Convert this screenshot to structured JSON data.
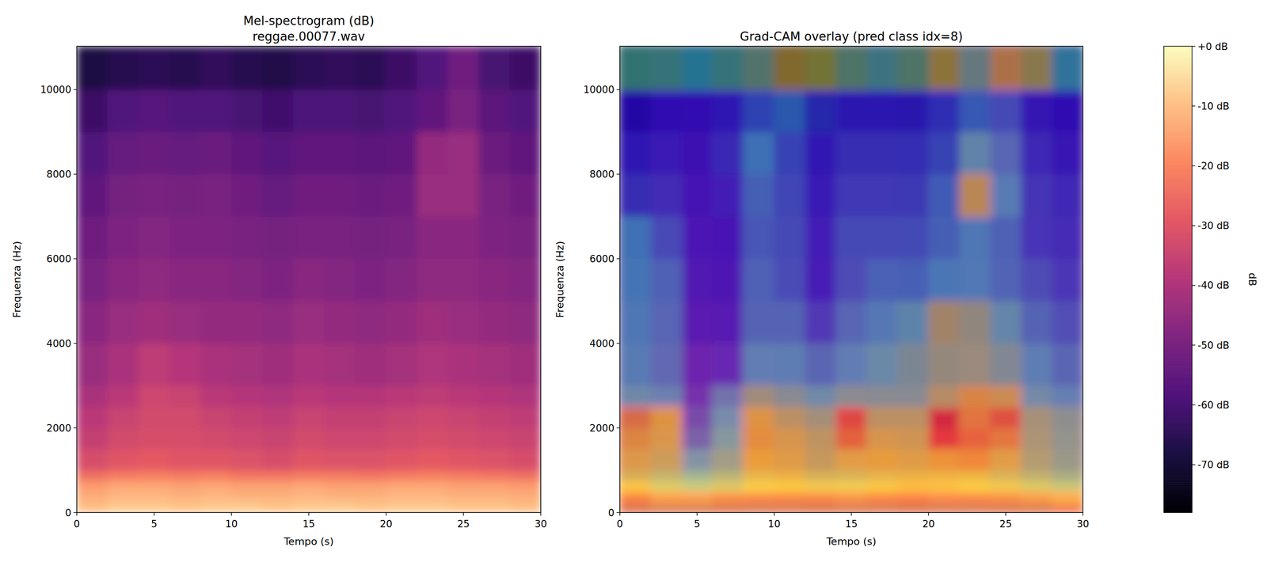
{
  "chart_data": [
    {
      "type": "heatmap",
      "title": "Mel-spectrogram (dB)",
      "subtitle": "reggae.00077.wav",
      "x_label": "Tempo (s)",
      "y_label": "Frequenza (Hz)",
      "xlim": [
        0,
        30
      ],
      "ylim": [
        0,
        11025
      ],
      "xticks": [
        0,
        5,
        10,
        15,
        20,
        25,
        30
      ],
      "yticks": [
        0,
        2000,
        4000,
        6000,
        8000,
        10000
      ],
      "color": "magma",
      "x_bins": [
        0,
        2,
        4,
        6,
        8,
        10,
        12,
        14,
        16,
        18,
        20,
        22,
        24,
        26,
        28,
        30
      ],
      "y_bins": [
        0,
        250,
        500,
        750,
        1000,
        1500,
        2000,
        2500,
        3000,
        4000,
        5000,
        6000,
        7000,
        8000,
        9000,
        10000,
        11025
      ],
      "cells": [
        [
          -10,
          -8,
          -8,
          -9,
          -8,
          -8,
          -9,
          -8,
          -8,
          -9,
          -8,
          -8,
          -9,
          -9,
          -10
        ],
        [
          -13,
          -11,
          -11,
          -12,
          -11,
          -12,
          -12,
          -11,
          -12,
          -12,
          -11,
          -11,
          -12,
          -12,
          -13
        ],
        [
          -16,
          -14,
          -14,
          -15,
          -14,
          -15,
          -15,
          -14,
          -15,
          -15,
          -14,
          -14,
          -15,
          -15,
          -16
        ],
        [
          -24,
          -22,
          -21,
          -22,
          -21,
          -23,
          -23,
          -22,
          -22,
          -23,
          -22,
          -21,
          -22,
          -23,
          -24
        ],
        [
          -32,
          -30,
          -29,
          -30,
          -30,
          -31,
          -32,
          -30,
          -31,
          -31,
          -30,
          -29,
          -30,
          -31,
          -32
        ],
        [
          -36,
          -33,
          -32,
          -32,
          -33,
          -34,
          -35,
          -33,
          -34,
          -34,
          -33,
          -32,
          -33,
          -34,
          -35
        ],
        [
          -38,
          -35,
          -33,
          -33,
          -35,
          -36,
          -37,
          -35,
          -36,
          -36,
          -35,
          -34,
          -35,
          -36,
          -37
        ],
        [
          -41,
          -38,
          -34,
          -35,
          -38,
          -39,
          -40,
          -38,
          -39,
          -39,
          -38,
          -37,
          -38,
          -39,
          -40
        ],
        [
          -44,
          -41,
          -37,
          -39,
          -41,
          -42,
          -43,
          -41,
          -42,
          -43,
          -42,
          -40,
          -41,
          -42,
          -43
        ],
        [
          -47,
          -44,
          -43,
          -44,
          -45,
          -45,
          -46,
          -44,
          -45,
          -46,
          -45,
          -43,
          -44,
          -45,
          -46
        ],
        [
          -50,
          -47,
          -46,
          -47,
          -47,
          -48,
          -49,
          -47,
          -48,
          -49,
          -48,
          -46,
          -46,
          -47,
          -48
        ],
        [
          -52,
          -49,
          -48,
          -49,
          -49,
          -50,
          -51,
          -50,
          -50,
          -51,
          -50,
          -47,
          -47,
          -49,
          -50
        ],
        [
          -55,
          -51,
          -50,
          -51,
          -50,
          -52,
          -54,
          -52,
          -52,
          -53,
          -52,
          -44,
          -44,
          -50,
          -52
        ],
        [
          -58,
          -54,
          -53,
          -54,
          -53,
          -55,
          -57,
          -55,
          -55,
          -56,
          -55,
          -45,
          -44,
          -53,
          -55
        ],
        [
          -62,
          -58,
          -57,
          -58,
          -58,
          -60,
          -61,
          -59,
          -59,
          -60,
          -58,
          -55,
          -50,
          -56,
          -58
        ],
        [
          -68,
          -66,
          -65,
          -66,
          -64,
          -66,
          -67,
          -65,
          -64,
          -65,
          -62,
          -58,
          -52,
          -60,
          -62
        ]
      ],
      "colorbar": {
        "range": [
          -78,
          0
        ],
        "label": "dB",
        "ticks": [
          {
            "value": 0,
            "label": "+0 dB"
          },
          {
            "value": -10,
            "label": "-10 dB"
          },
          {
            "value": -20,
            "label": "-20 dB"
          },
          {
            "value": -30,
            "label": "-30 dB"
          },
          {
            "value": -40,
            "label": "-40 dB"
          },
          {
            "value": -50,
            "label": "-50 dB"
          },
          {
            "value": -60,
            "label": "-60 dB"
          },
          {
            "value": -70,
            "label": "-70 dB"
          }
        ]
      }
    },
    {
      "type": "heatmap_overlay",
      "title": "Grad-CAM overlay (pred class idx=8)",
      "x_label": "Tempo (s)",
      "y_label": "Frequenza (Hz)",
      "xlim": [
        0,
        30
      ],
      "ylim": [
        0,
        11025
      ],
      "xticks": [
        0,
        5,
        10,
        15,
        20,
        25,
        30
      ],
      "yticks": [
        0,
        2000,
        4000,
        6000,
        8000,
        10000
      ],
      "color": "jet",
      "cam_range": [
        0,
        1
      ],
      "x_bins": [
        0,
        2,
        4,
        6,
        8,
        10,
        12,
        14,
        16,
        18,
        20,
        22,
        24,
        26,
        28,
        30
      ],
      "y_bins": [
        0,
        250,
        500,
        750,
        1000,
        1500,
        2000,
        2500,
        3000,
        4000,
        5000,
        6000,
        7000,
        8000,
        9000,
        10000,
        11025
      ],
      "cells": [
        [
          0.95,
          0.95,
          0.95,
          0.95,
          0.95,
          0.95,
          0.95,
          0.95,
          0.95,
          0.95,
          0.95,
          0.95,
          0.95,
          0.95,
          0.9
        ],
        [
          0.8,
          0.75,
          0.75,
          0.78,
          0.8,
          0.8,
          0.8,
          0.78,
          0.8,
          0.82,
          0.8,
          0.8,
          0.78,
          0.75,
          0.7
        ],
        [
          0.62,
          0.55,
          0.5,
          0.55,
          0.62,
          0.62,
          0.6,
          0.6,
          0.62,
          0.65,
          0.65,
          0.62,
          0.6,
          0.55,
          0.5
        ],
        [
          0.55,
          0.5,
          0.42,
          0.48,
          0.58,
          0.6,
          0.55,
          0.55,
          0.58,
          0.6,
          0.6,
          0.6,
          0.55,
          0.5,
          0.45
        ],
        [
          0.6,
          0.55,
          0.35,
          0.45,
          0.62,
          0.6,
          0.55,
          0.6,
          0.62,
          0.6,
          0.65,
          0.68,
          0.6,
          0.5,
          0.45
        ],
        [
          0.65,
          0.6,
          0.25,
          0.4,
          0.65,
          0.6,
          0.55,
          0.75,
          0.6,
          0.58,
          0.85,
          0.75,
          0.7,
          0.5,
          0.45
        ],
        [
          0.7,
          0.62,
          0.2,
          0.35,
          0.62,
          0.55,
          0.5,
          0.8,
          0.55,
          0.55,
          0.9,
          0.7,
          0.78,
          0.5,
          0.45
        ],
        [
          0.4,
          0.35,
          0.15,
          0.3,
          0.5,
          0.45,
          0.4,
          0.45,
          0.45,
          0.45,
          0.55,
          0.65,
          0.6,
          0.4,
          0.35
        ],
        [
          0.35,
          0.3,
          0.12,
          0.15,
          0.35,
          0.35,
          0.3,
          0.35,
          0.4,
          0.45,
          0.5,
          0.5,
          0.45,
          0.35,
          0.3
        ],
        [
          0.35,
          0.3,
          0.12,
          0.12,
          0.3,
          0.3,
          0.2,
          0.3,
          0.35,
          0.4,
          0.55,
          0.5,
          0.4,
          0.3,
          0.25
        ],
        [
          0.35,
          0.3,
          0.12,
          0.12,
          0.3,
          0.25,
          0.15,
          0.25,
          0.3,
          0.3,
          0.35,
          0.35,
          0.3,
          0.25,
          0.2
        ],
        [
          0.35,
          0.25,
          0.12,
          0.12,
          0.28,
          0.25,
          0.15,
          0.25,
          0.25,
          0.25,
          0.3,
          0.35,
          0.3,
          0.2,
          0.18
        ],
        [
          0.2,
          0.18,
          0.12,
          0.15,
          0.3,
          0.25,
          0.15,
          0.22,
          0.22,
          0.22,
          0.3,
          0.6,
          0.35,
          0.2,
          0.18
        ],
        [
          0.15,
          0.15,
          0.12,
          0.18,
          0.35,
          0.25,
          0.15,
          0.2,
          0.2,
          0.2,
          0.25,
          0.4,
          0.3,
          0.18,
          0.15
        ],
        [
          0.12,
          0.12,
          0.12,
          0.15,
          0.25,
          0.3,
          0.2,
          0.15,
          0.15,
          0.15,
          0.2,
          0.3,
          0.25,
          0.15,
          0.12
        ],
        [
          0.45,
          0.45,
          0.4,
          0.45,
          0.5,
          0.65,
          0.6,
          0.5,
          0.45,
          0.5,
          0.62,
          0.5,
          0.65,
          0.6,
          0.4
        ]
      ]
    }
  ]
}
